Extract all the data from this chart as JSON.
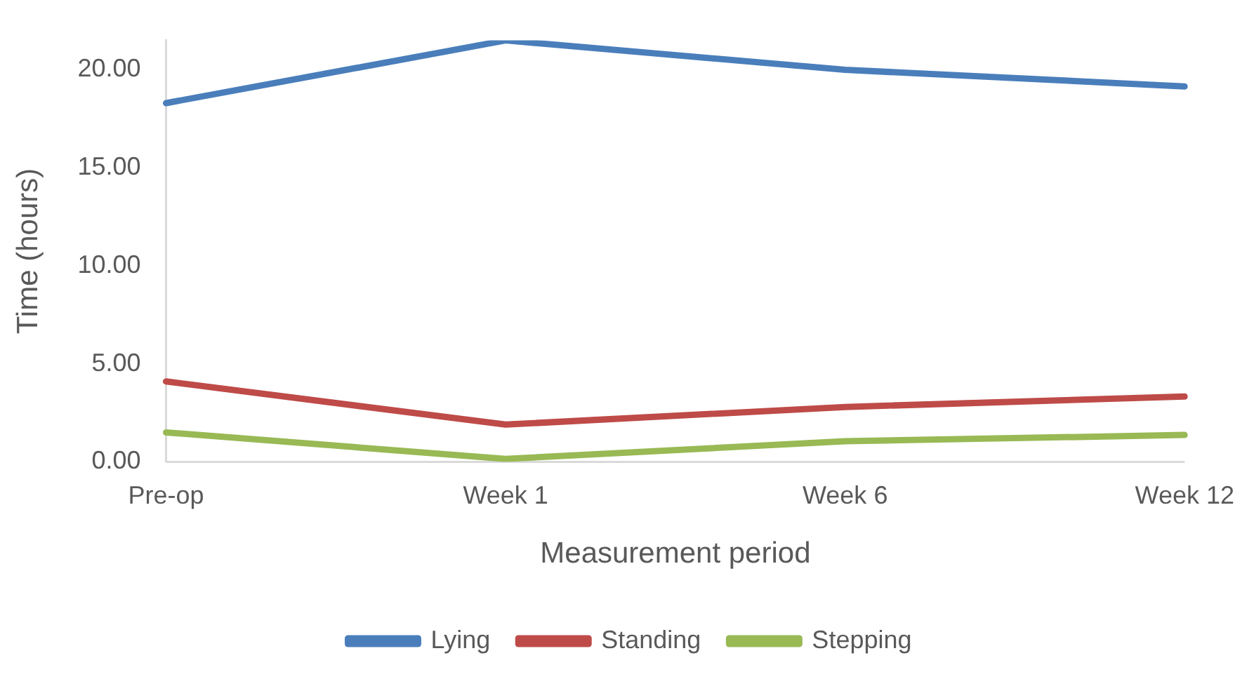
{
  "chart_data": {
    "type": "line",
    "xlabel": "Measurement period",
    "ylabel": "Time (hours)",
    "categories": [
      "Pre-op",
      "Week 1",
      "Week 6",
      "Week 12"
    ],
    "series": [
      {
        "name": "Lying",
        "color": "#4a7ebb",
        "values": [
          18.3,
          21.5,
          20.0,
          19.15
        ]
      },
      {
        "name": "Standing",
        "color": "#be4b48",
        "values": [
          4.1,
          1.9,
          2.8,
          3.33
        ]
      },
      {
        "name": "Stepping",
        "color": "#98b954",
        "values": [
          1.5,
          0.15,
          1.05,
          1.37
        ]
      }
    ],
    "ylim": [
      0,
      21.5
    ],
    "yticks": [
      {
        "value": 0,
        "label": "0.00"
      },
      {
        "value": 5,
        "label": "5.00"
      },
      {
        "value": 10,
        "label": "10.00"
      },
      {
        "value": 15,
        "label": "15.00"
      },
      {
        "value": 20,
        "label": "20.00"
      }
    ],
    "grid": false,
    "legend": "bottom",
    "marker": "none",
    "line_style": "solid"
  }
}
